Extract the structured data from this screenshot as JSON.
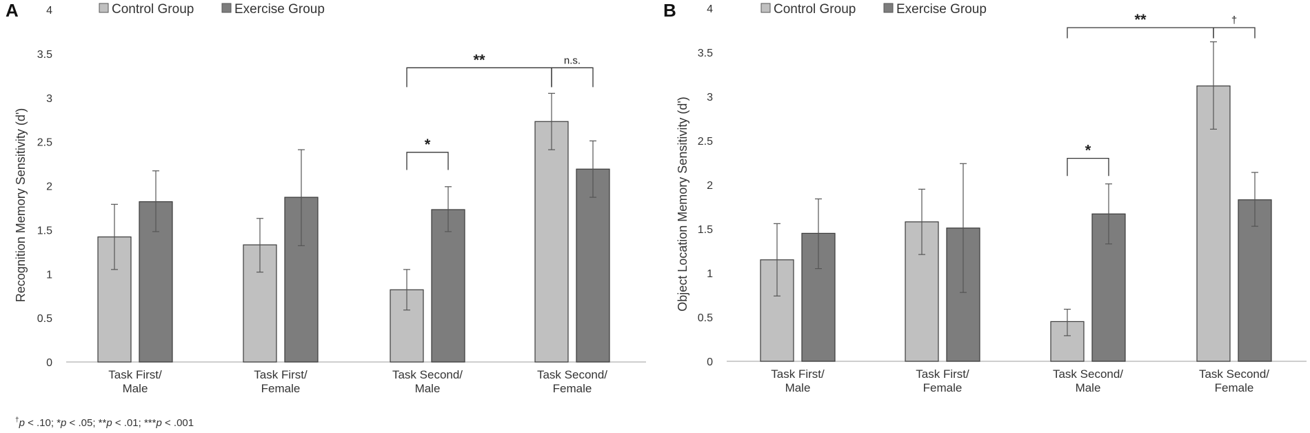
{
  "chart_data": [
    {
      "type": "bar",
      "panel_label": "A",
      "title": "",
      "xlabel": "",
      "ylabel": "Recognition Memory Sensitivity (d')",
      "ylim": [
        0,
        4
      ],
      "yticks": [
        "0",
        "0.5",
        "1",
        "1.5",
        "2",
        "2.5",
        "3",
        "3.5",
        "4"
      ],
      "categories": [
        [
          "Task First/",
          "Male"
        ],
        [
          "Task First/",
          "Female"
        ],
        [
          "Task Second/",
          "Male"
        ],
        [
          "Task Second/",
          "Female"
        ]
      ],
      "legend": {
        "position": "top",
        "entries": [
          "Control Group",
          "Exercise Group"
        ]
      },
      "grid": false,
      "series": [
        {
          "name": "Control Group",
          "color": "#c0c0c0",
          "values": [
            1.42,
            1.33,
            0.82,
            2.73
          ],
          "error_low": [
            1.05,
            1.02,
            0.59,
            2.41
          ],
          "error_high": [
            1.79,
            1.63,
            1.05,
            3.05
          ]
        },
        {
          "name": "Exercise Group",
          "color": "#7d7d7d",
          "values": [
            1.82,
            1.87,
            1.73,
            2.19
          ],
          "error_low": [
            1.48,
            1.32,
            1.48,
            1.87
          ],
          "error_high": [
            2.17,
            2.41,
            1.99,
            2.51
          ]
        }
      ],
      "annotations": [
        {
          "type": "bracket",
          "label": "*",
          "from": [
            2,
            0
          ],
          "to": [
            2,
            1
          ],
          "y": 2.38,
          "drop": 0.2
        },
        {
          "type": "bracket",
          "label": "**",
          "from": [
            2,
            0
          ],
          "to": [
            3,
            0
          ],
          "y": 3.34,
          "drop": 0.22
        },
        {
          "type": "bracket",
          "label": "n.s.",
          "from": [
            3,
            0
          ],
          "to": [
            3,
            1
          ],
          "y": 3.34,
          "drop": 0.22
        }
      ]
    },
    {
      "type": "bar",
      "panel_label": "B",
      "title": "",
      "xlabel": "",
      "ylabel": "Object Location Memory Sensitivity (d')",
      "ylim": [
        0,
        4
      ],
      "yticks": [
        "0",
        "0.5",
        "1",
        "1.5",
        "2",
        "2.5",
        "3",
        "3.5",
        "4"
      ],
      "categories": [
        [
          "Task First/",
          "Male"
        ],
        [
          "Task First/",
          "Female"
        ],
        [
          "Task Second/",
          "Male"
        ],
        [
          "Task Second/",
          "Female"
        ]
      ],
      "legend": {
        "position": "top",
        "entries": [
          "Control Group",
          "Exercise Group"
        ]
      },
      "grid": false,
      "series": [
        {
          "name": "Control Group",
          "color": "#c0c0c0",
          "values": [
            1.15,
            1.58,
            0.45,
            3.12
          ],
          "error_low": [
            0.74,
            1.21,
            0.29,
            2.63
          ],
          "error_high": [
            1.56,
            1.95,
            0.59,
            3.62
          ]
        },
        {
          "name": "Exercise Group",
          "color": "#7d7d7d",
          "values": [
            1.45,
            1.51,
            1.67,
            1.83
          ],
          "error_low": [
            1.05,
            0.78,
            1.33,
            1.53
          ],
          "error_high": [
            1.84,
            2.24,
            2.01,
            2.14
          ]
        }
      ],
      "annotations": [
        {
          "type": "bracket",
          "label": "*",
          "from": [
            2,
            0
          ],
          "to": [
            2,
            1
          ],
          "y": 2.3,
          "drop": 0.2
        },
        {
          "type": "bracket",
          "label": "**",
          "from": [
            2,
            0
          ],
          "to": [
            3,
            0
          ],
          "y": 3.78,
          "drop": 0.12
        },
        {
          "type": "bracket",
          "label": "†",
          "from": [
            3,
            0
          ],
          "to": [
            3,
            1
          ],
          "y": 3.78,
          "drop": 0.12
        }
      ]
    }
  ],
  "footnote": {
    "dagger": "†",
    "p": "p",
    "t1": " < .10; *",
    "t2": " < .05; **",
    "t3": " < .01; ***",
    "t4": " < .001"
  }
}
